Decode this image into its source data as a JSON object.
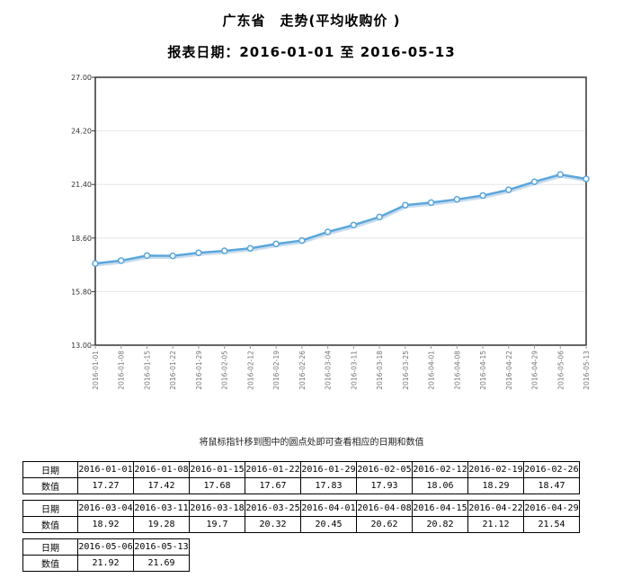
{
  "title": "广东省　走势(平均收购价 )",
  "subtitle": "报表日期：2016-01-01 至 2016-05-13",
  "hint": "将鼠标指针移到图中的圆点处即可查看相应的日期和数值",
  "table_labels": {
    "date": "日期",
    "value": "数值"
  },
  "table_values": [
    "17.27",
    "17.42",
    "17.68",
    "17.67",
    "17.83",
    "17.93",
    "18.06",
    "18.29",
    "18.47",
    "18.92",
    "19.28",
    "19.7",
    "20.32",
    "20.45",
    "20.62",
    "20.82",
    "21.12",
    "21.54",
    "21.92",
    "21.69"
  ],
  "colors": {
    "line": "#5aa6dc",
    "marker_fill": "#ffffff",
    "frame": "#333333"
  },
  "chart_data": {
    "type": "line",
    "x": [
      "2016-01-01",
      "2016-01-08",
      "2016-01-15",
      "2016-01-22",
      "2016-01-29",
      "2016-02-05",
      "2016-02-12",
      "2016-02-19",
      "2016-02-26",
      "2016-03-04",
      "2016-03-11",
      "2016-03-18",
      "2016-03-25",
      "2016-04-01",
      "2016-04-08",
      "2016-04-15",
      "2016-04-22",
      "2016-04-29",
      "2016-05-06",
      "2016-05-13"
    ],
    "values": [
      17.27,
      17.42,
      17.68,
      17.67,
      17.83,
      17.93,
      18.06,
      18.29,
      18.47,
      18.92,
      19.28,
      19.7,
      20.32,
      20.45,
      20.62,
      20.82,
      21.12,
      21.54,
      21.92,
      21.69
    ],
    "yticks": [
      "13.00",
      "15.80",
      "18.60",
      "21.40",
      "24.20",
      "27.00"
    ],
    "ylim": [
      13,
      27
    ],
    "grid": true,
    "legend": "none"
  }
}
